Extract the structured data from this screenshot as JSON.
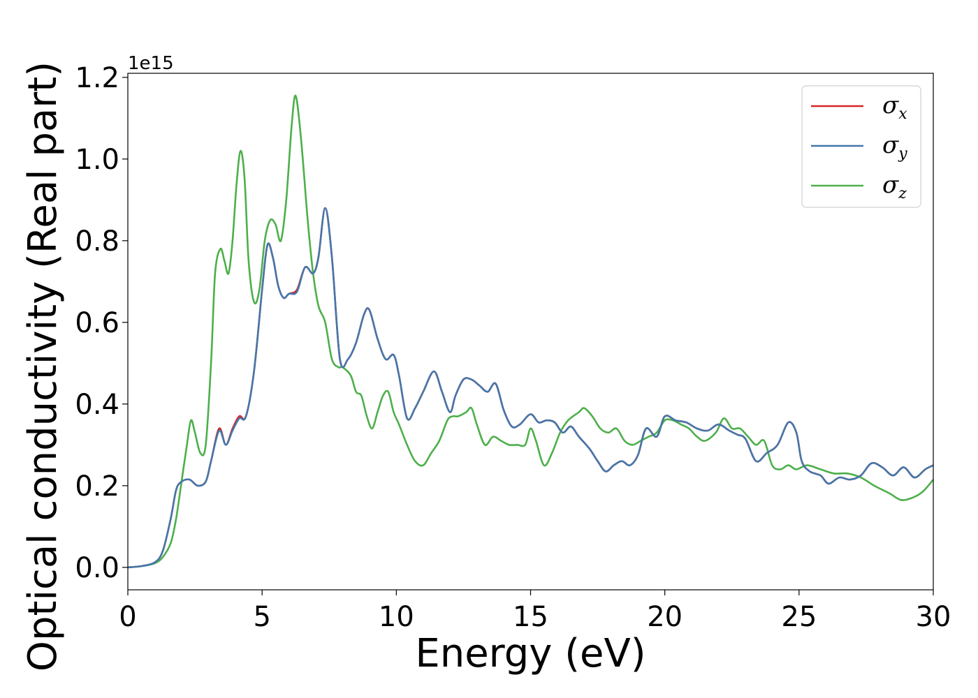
{
  "chart_data": {
    "type": "line",
    "title": "",
    "xlabel": "Energy (eV)",
    "ylabel": "Optical conductivity (Real part)",
    "y_offset_label": "1e15",
    "xlim": [
      0,
      30
    ],
    "ylim": [
      -0.055,
      1.21
    ],
    "x_ticks": [
      0,
      5,
      10,
      15,
      20,
      25,
      30
    ],
    "x_tick_labels": [
      "0",
      "5",
      "10",
      "15",
      "20",
      "25",
      "30"
    ],
    "y_ticks": [
      0.0,
      0.2,
      0.4,
      0.6,
      0.8,
      1.0,
      1.2
    ],
    "y_tick_labels": [
      "0.0",
      "0.2",
      "0.4",
      "0.6",
      "0.8",
      "1.0",
      "1.2"
    ],
    "grid": false,
    "legend_position": "top-right",
    "colors": {
      "sigma_x": "#d62728",
      "sigma_y": "#4477aa",
      "sigma_z": "#4daf4a"
    },
    "series": [
      {
        "name": "σx",
        "symbol": "σ",
        "subscript": "x",
        "color": "#d62728",
        "x": [
          0,
          0.5,
          1.0,
          1.3,
          1.6,
          1.8,
          2.0,
          2.3,
          2.6,
          2.9,
          3.1,
          3.4,
          3.65,
          3.9,
          4.15,
          4.4,
          4.7,
          5.0,
          5.2,
          5.4,
          5.6,
          5.8,
          6.0,
          6.3,
          6.6,
          6.9,
          7.1,
          7.35,
          7.6,
          7.9,
          8.2,
          8.5,
          8.8,
          9.0,
          9.3,
          9.6,
          9.9,
          10.1,
          10.4,
          10.7,
          11.0,
          11.4,
          11.7,
          12.0,
          12.2,
          12.5,
          12.8,
          13.1,
          13.4,
          13.7,
          14.0,
          14.3,
          14.6,
          15.0,
          15.3,
          15.6,
          15.9,
          16.2,
          16.5,
          16.8,
          17.2,
          17.5,
          17.8,
          18.1,
          18.4,
          18.7,
          19.0,
          19.3,
          19.7,
          20.0,
          20.4,
          20.8,
          21.2,
          21.6,
          22.0,
          22.4,
          22.7,
          23.0,
          23.4,
          23.8,
          24.2,
          24.6,
          24.9,
          25.1,
          25.4,
          25.8,
          26.1,
          26.5,
          26.9,
          27.3,
          27.7,
          28.1,
          28.5,
          28.9,
          29.3,
          29.7,
          30.0
        ],
        "y": [
          0,
          0.003,
          0.012,
          0.04,
          0.12,
          0.19,
          0.21,
          0.215,
          0.2,
          0.21,
          0.26,
          0.34,
          0.3,
          0.34,
          0.37,
          0.37,
          0.48,
          0.68,
          0.79,
          0.76,
          0.69,
          0.66,
          0.67,
          0.68,
          0.735,
          0.72,
          0.76,
          0.88,
          0.76,
          0.51,
          0.51,
          0.55,
          0.62,
          0.63,
          0.56,
          0.51,
          0.52,
          0.47,
          0.365,
          0.39,
          0.43,
          0.48,
          0.43,
          0.38,
          0.42,
          0.46,
          0.46,
          0.445,
          0.43,
          0.45,
          0.385,
          0.345,
          0.35,
          0.375,
          0.355,
          0.36,
          0.355,
          0.33,
          0.345,
          0.32,
          0.29,
          0.26,
          0.235,
          0.25,
          0.26,
          0.25,
          0.275,
          0.34,
          0.32,
          0.37,
          0.36,
          0.355,
          0.34,
          0.335,
          0.35,
          0.335,
          0.325,
          0.315,
          0.26,
          0.28,
          0.3,
          0.355,
          0.33,
          0.26,
          0.235,
          0.225,
          0.205,
          0.22,
          0.215,
          0.225,
          0.255,
          0.245,
          0.225,
          0.245,
          0.22,
          0.24,
          0.25
        ]
      },
      {
        "name": "σy",
        "symbol": "σ",
        "subscript": "y",
        "color": "#4477aa",
        "x": [
          0,
          0.5,
          1.0,
          1.3,
          1.6,
          1.8,
          2.0,
          2.3,
          2.6,
          2.9,
          3.1,
          3.4,
          3.65,
          3.9,
          4.15,
          4.4,
          4.7,
          5.0,
          5.2,
          5.4,
          5.6,
          5.8,
          6.0,
          6.3,
          6.6,
          6.9,
          7.1,
          7.35,
          7.6,
          7.9,
          8.2,
          8.5,
          8.8,
          9.0,
          9.3,
          9.6,
          9.9,
          10.1,
          10.4,
          10.7,
          11.0,
          11.4,
          11.7,
          12.0,
          12.2,
          12.5,
          12.8,
          13.1,
          13.4,
          13.7,
          14.0,
          14.3,
          14.6,
          15.0,
          15.3,
          15.6,
          15.9,
          16.2,
          16.5,
          16.8,
          17.2,
          17.5,
          17.8,
          18.1,
          18.4,
          18.7,
          19.0,
          19.3,
          19.7,
          20.0,
          20.4,
          20.8,
          21.2,
          21.6,
          22.0,
          22.4,
          22.7,
          23.0,
          23.4,
          23.8,
          24.2,
          24.6,
          24.9,
          25.1,
          25.4,
          25.8,
          26.1,
          26.5,
          26.9,
          27.3,
          27.7,
          28.1,
          28.5,
          28.9,
          29.3,
          29.7,
          30.0
        ],
        "y": [
          0,
          0.003,
          0.012,
          0.04,
          0.12,
          0.19,
          0.21,
          0.215,
          0.2,
          0.21,
          0.26,
          0.335,
          0.3,
          0.335,
          0.365,
          0.37,
          0.48,
          0.68,
          0.79,
          0.76,
          0.69,
          0.66,
          0.67,
          0.675,
          0.735,
          0.72,
          0.76,
          0.88,
          0.76,
          0.51,
          0.51,
          0.55,
          0.62,
          0.63,
          0.56,
          0.51,
          0.52,
          0.47,
          0.365,
          0.39,
          0.43,
          0.48,
          0.43,
          0.38,
          0.42,
          0.46,
          0.46,
          0.445,
          0.43,
          0.45,
          0.385,
          0.345,
          0.35,
          0.375,
          0.355,
          0.36,
          0.355,
          0.33,
          0.345,
          0.32,
          0.29,
          0.26,
          0.235,
          0.25,
          0.26,
          0.25,
          0.275,
          0.34,
          0.32,
          0.37,
          0.36,
          0.355,
          0.34,
          0.335,
          0.35,
          0.335,
          0.325,
          0.315,
          0.26,
          0.28,
          0.3,
          0.355,
          0.33,
          0.26,
          0.235,
          0.225,
          0.205,
          0.22,
          0.215,
          0.225,
          0.255,
          0.245,
          0.225,
          0.245,
          0.22,
          0.24,
          0.25
        ]
      },
      {
        "name": "σz",
        "symbol": "σ",
        "subscript": "z",
        "color": "#4daf4a",
        "x": [
          0,
          0.5,
          1.0,
          1.3,
          1.6,
          1.8,
          2.0,
          2.2,
          2.35,
          2.5,
          2.7,
          2.9,
          3.1,
          3.25,
          3.45,
          3.6,
          3.75,
          3.9,
          4.05,
          4.2,
          4.35,
          4.5,
          4.7,
          4.9,
          5.1,
          5.3,
          5.5,
          5.7,
          5.9,
          6.1,
          6.25,
          6.45,
          6.7,
          6.9,
          7.1,
          7.35,
          7.6,
          7.85,
          8.0,
          8.3,
          8.5,
          8.7,
          8.9,
          9.1,
          9.3,
          9.5,
          9.7,
          9.9,
          10.1,
          10.4,
          10.7,
          11.0,
          11.3,
          11.6,
          11.9,
          12.1,
          12.3,
          12.6,
          12.8,
          13.0,
          13.3,
          13.6,
          13.9,
          14.2,
          14.5,
          14.8,
          15.0,
          15.2,
          15.5,
          15.8,
          16.1,
          16.4,
          16.8,
          17.0,
          17.3,
          17.6,
          17.9,
          18.2,
          18.5,
          18.8,
          19.1,
          19.4,
          19.7,
          20.0,
          20.3,
          20.6,
          20.9,
          21.2,
          21.5,
          21.9,
          22.2,
          22.5,
          22.8,
          23.1,
          23.4,
          23.7,
          24.0,
          24.3,
          24.6,
          24.9,
          25.3,
          25.8,
          26.3,
          26.8,
          27.3,
          27.8,
          28.1,
          28.4,
          28.8,
          29.2,
          29.6,
          30.0
        ],
        "y": [
          0,
          0.003,
          0.01,
          0.025,
          0.06,
          0.12,
          0.21,
          0.3,
          0.36,
          0.33,
          0.28,
          0.3,
          0.5,
          0.72,
          0.78,
          0.75,
          0.72,
          0.8,
          0.94,
          1.02,
          0.95,
          0.75,
          0.65,
          0.68,
          0.8,
          0.85,
          0.84,
          0.8,
          0.9,
          1.08,
          1.155,
          1.05,
          0.85,
          0.72,
          0.64,
          0.6,
          0.51,
          0.49,
          0.49,
          0.47,
          0.43,
          0.42,
          0.37,
          0.34,
          0.38,
          0.42,
          0.43,
          0.38,
          0.35,
          0.3,
          0.26,
          0.25,
          0.28,
          0.31,
          0.36,
          0.37,
          0.37,
          0.38,
          0.39,
          0.35,
          0.3,
          0.32,
          0.31,
          0.3,
          0.3,
          0.3,
          0.34,
          0.31,
          0.25,
          0.28,
          0.33,
          0.36,
          0.38,
          0.39,
          0.37,
          0.34,
          0.33,
          0.34,
          0.31,
          0.3,
          0.31,
          0.32,
          0.33,
          0.36,
          0.36,
          0.35,
          0.34,
          0.32,
          0.31,
          0.33,
          0.365,
          0.34,
          0.34,
          0.32,
          0.3,
          0.31,
          0.25,
          0.24,
          0.25,
          0.24,
          0.25,
          0.24,
          0.23,
          0.23,
          0.22,
          0.2,
          0.19,
          0.18,
          0.165,
          0.17,
          0.185,
          0.215
        ]
      }
    ]
  }
}
